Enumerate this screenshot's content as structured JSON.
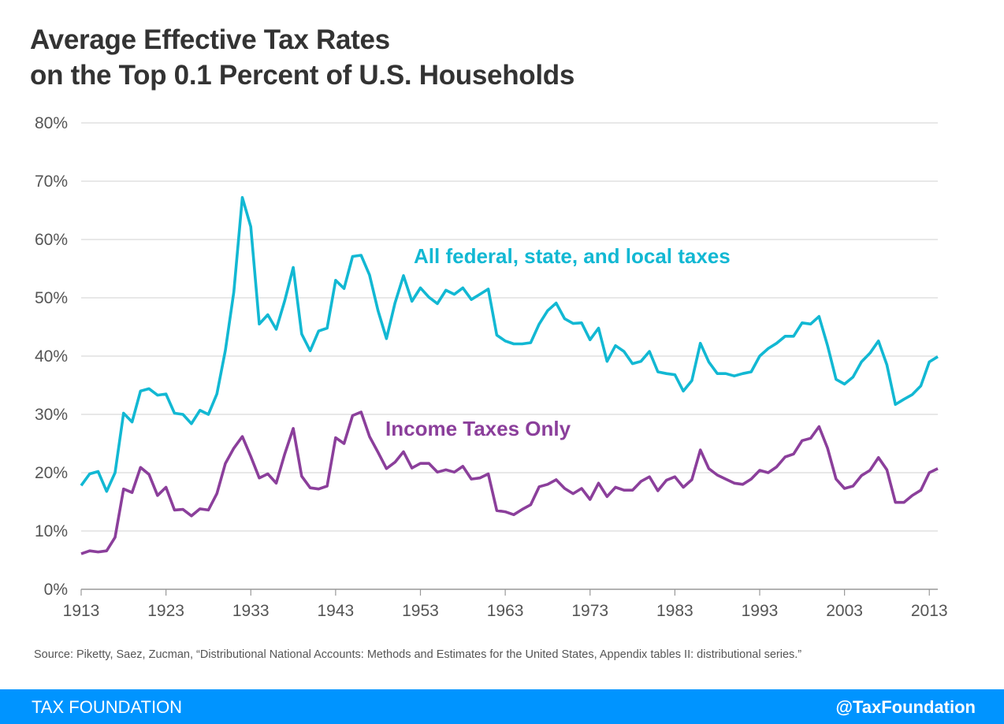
{
  "title_lines": [
    "Average Effective Tax Rates",
    "on the Top 0.1 Percent of U.S. Households"
  ],
  "source": "Source: Piketty, Saez, Zucman, “Distributional National Accounts: Methods and Estimates for the United States, Appendix tables II: distributional series.”",
  "footer": {
    "brand": "TAX FOUNDATION",
    "handle": "@TaxFoundation",
    "color": "#0094ff"
  },
  "chart_data": {
    "type": "line",
    "title": "Average Effective Tax Rates on the Top 0.1 Percent of U.S. Households",
    "xlabel": "",
    "ylabel": "",
    "xlim": [
      1913,
      2014
    ],
    "ylim": [
      0,
      80
    ],
    "grid": true,
    "x_ticks": [
      "1913",
      "1923",
      "1933",
      "1943",
      "1953",
      "1963",
      "1973",
      "1983",
      "1993",
      "2003",
      "2013"
    ],
    "y_ticks": [
      "0%",
      "10%",
      "20%",
      "30%",
      "40%",
      "50%",
      "60%",
      "70%",
      "80%"
    ],
    "x_start": 1913,
    "series": [
      {
        "name": "All federal, state, and local taxes",
        "color": "#12b8d3",
        "values": [
          17.8,
          19.8,
          20.2,
          16.8,
          20.0,
          30.2,
          28.7,
          34.0,
          34.4,
          33.3,
          33.5,
          30.2,
          30.0,
          28.4,
          30.7,
          30.0,
          33.5,
          41.0,
          51.0,
          67.2,
          62.2,
          45.5,
          47.1,
          44.6,
          49.5,
          55.2,
          43.8,
          40.9,
          44.3,
          44.8,
          53.0,
          51.6,
          57.1,
          57.3,
          53.9,
          47.8,
          43.0,
          49.1,
          53.8,
          49.4,
          51.7,
          50.1,
          49.0,
          51.3,
          50.6,
          51.7,
          49.7,
          50.6,
          51.5,
          43.6,
          42.6,
          42.1,
          42.1,
          42.3,
          45.5,
          47.8,
          49.1,
          46.4,
          45.6,
          45.7,
          42.8,
          44.8,
          39.1,
          41.8,
          40.8,
          38.7,
          39.1,
          40.8,
          37.3,
          37.0,
          36.8,
          34.0,
          35.8,
          42.2,
          39.0,
          37.0,
          37.0,
          36.6,
          37.0,
          37.3,
          40.0,
          41.3,
          42.2,
          43.4,
          43.4,
          45.7,
          45.5,
          46.8,
          41.8,
          36.0,
          35.2,
          36.4,
          39.0,
          40.5,
          42.6,
          38.5,
          31.7,
          32.6,
          33.4,
          34.9,
          39.0,
          39.9
        ]
      },
      {
        "name": "Income Taxes Only",
        "color": "#8b3f9b",
        "values": [
          6.1,
          6.6,
          6.4,
          6.6,
          8.9,
          17.2,
          16.6,
          20.9,
          19.7,
          16.1,
          17.5,
          13.6,
          13.7,
          12.6,
          13.8,
          13.6,
          16.4,
          21.6,
          24.2,
          26.2,
          22.8,
          19.1,
          19.8,
          18.2,
          23.2,
          27.6,
          19.4,
          17.4,
          17.2,
          17.7,
          26.0,
          25.0,
          29.8,
          30.4,
          26.2,
          23.5,
          20.7,
          21.8,
          23.6,
          20.8,
          21.6,
          21.6,
          20.1,
          20.5,
          20.1,
          21.1,
          18.9,
          19.1,
          19.8,
          13.5,
          13.3,
          12.8,
          13.7,
          14.5,
          17.6,
          18.0,
          18.8,
          17.3,
          16.4,
          17.3,
          15.4,
          18.2,
          15.9,
          17.5,
          17.0,
          17.0,
          18.5,
          19.3,
          16.9,
          18.7,
          19.3,
          17.5,
          18.8,
          23.9,
          20.7,
          19.6,
          18.9,
          18.2,
          18.0,
          18.9,
          20.4,
          20.0,
          21.0,
          22.7,
          23.2,
          25.5,
          25.9,
          27.9,
          24.2,
          18.9,
          17.3,
          17.7,
          19.5,
          20.4,
          22.6,
          20.5,
          14.9,
          14.9,
          16.1,
          17.0,
          20.0,
          20.7
        ]
      }
    ]
  }
}
